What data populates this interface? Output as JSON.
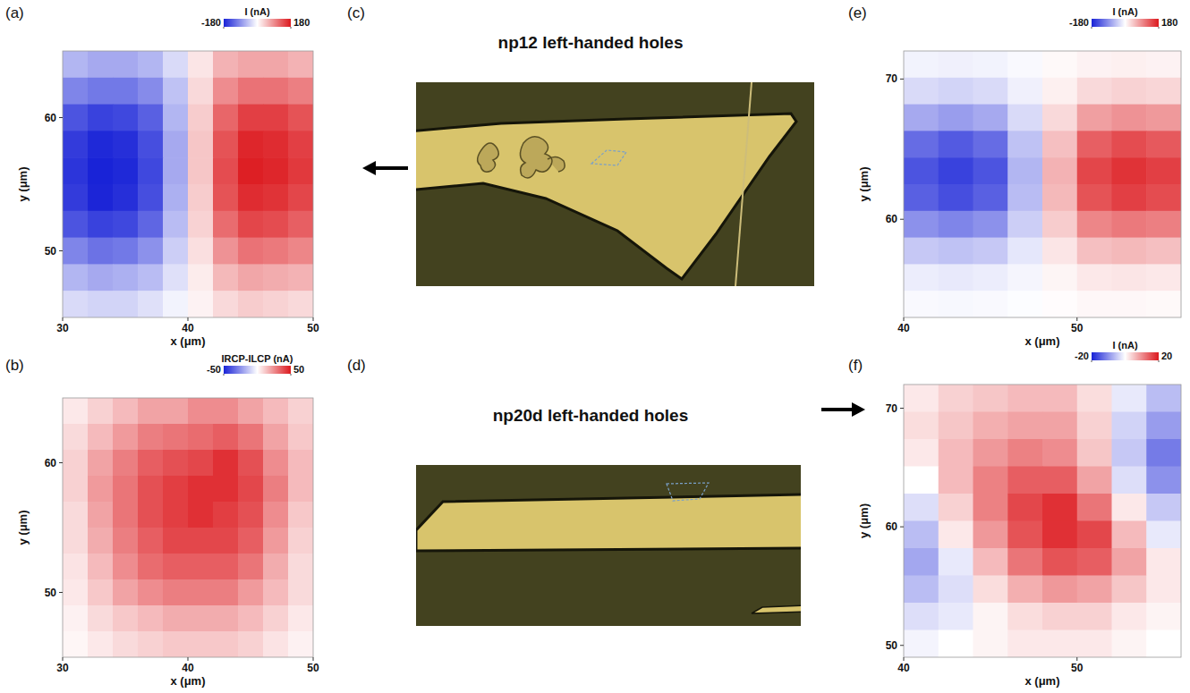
{
  "chart_data": [
    {
      "type": "heatmap",
      "label": "(a)",
      "xlabel": "x (μm)",
      "ylabel": "y (μm)",
      "xlim": [
        30,
        50
      ],
      "ylim": [
        45,
        65
      ],
      "xticks": [
        30,
        40,
        50
      ],
      "yticks": [
        50,
        60
      ],
      "colorbar": {
        "title": "I (nA)",
        "lim": [
          -180,
          180
        ],
        "ticks": [
          -180,
          180
        ]
      },
      "cells": [
        [
          -60,
          -70,
          -70,
          -60,
          -30,
          20,
          60,
          70,
          70,
          60
        ],
        [
          -100,
          -110,
          -110,
          -95,
          -50,
          30,
          90,
          110,
          110,
          100
        ],
        [
          -140,
          -155,
          -150,
          -130,
          -60,
          40,
          120,
          150,
          150,
          135
        ],
        [
          -160,
          -175,
          -170,
          -145,
          -70,
          45,
          135,
          170,
          165,
          150
        ],
        [
          -165,
          -180,
          -175,
          -150,
          -70,
          45,
          140,
          175,
          170,
          155
        ],
        [
          -160,
          -178,
          -170,
          -145,
          -65,
          40,
          135,
          165,
          160,
          145
        ],
        [
          -140,
          -155,
          -150,
          -125,
          -55,
          35,
          115,
          145,
          140,
          125
        ],
        [
          -100,
          -115,
          -110,
          -90,
          -40,
          25,
          85,
          110,
          105,
          95
        ],
        [
          -60,
          -70,
          -65,
          -55,
          -25,
          15,
          55,
          70,
          65,
          60
        ],
        [
          -30,
          -35,
          -35,
          -25,
          -10,
          10,
          30,
          40,
          35,
          30
        ]
      ]
    },
    {
      "type": "heatmap",
      "label": "(b)",
      "xlabel": "x (μm)",
      "ylabel": "y (μm)",
      "xlim": [
        30,
        50
      ],
      "ylim": [
        45,
        65
      ],
      "xticks": [
        30,
        40,
        50
      ],
      "yticks": [
        50,
        60
      ],
      "colorbar": {
        "title": "IRCP-ILCP (nA)",
        "lim": [
          -50,
          50
        ],
        "ticks": [
          -50,
          50
        ]
      },
      "cells": [
        [
          5,
          10,
          15,
          20,
          20,
          25,
          25,
          20,
          15,
          10
        ],
        [
          8,
          15,
          22,
          28,
          30,
          32,
          35,
          30,
          20,
          12
        ],
        [
          10,
          20,
          28,
          35,
          38,
          40,
          45,
          38,
          25,
          15
        ],
        [
          10,
          22,
          30,
          38,
          42,
          45,
          45,
          40,
          28,
          15
        ],
        [
          8,
          20,
          30,
          38,
          42,
          45,
          42,
          38,
          25,
          12
        ],
        [
          8,
          18,
          28,
          35,
          40,
          40,
          40,
          35,
          22,
          10
        ],
        [
          6,
          15,
          25,
          32,
          35,
          35,
          35,
          30,
          18,
          8
        ],
        [
          5,
          12,
          20,
          25,
          28,
          28,
          28,
          22,
          15,
          8
        ],
        [
          3,
          8,
          12,
          15,
          18,
          18,
          18,
          15,
          10,
          5
        ],
        [
          2,
          5,
          8,
          10,
          12,
          12,
          12,
          10,
          6,
          3
        ]
      ]
    },
    {
      "type": "heatmap",
      "label": "(e)",
      "xlabel": "x (μm)",
      "ylabel": "y (μm)",
      "xlim": [
        40,
        56
      ],
      "ylim": [
        53,
        72
      ],
      "xticks": [
        40,
        50
      ],
      "yticks": [
        60,
        70
      ],
      "colorbar": {
        "title": "I (nA)",
        "lim": [
          -180,
          180
        ],
        "ticks": [
          -180,
          180
        ]
      },
      "cells": [
        [
          -10,
          -12,
          -10,
          -5,
          5,
          10,
          12,
          10
        ],
        [
          -30,
          -35,
          -30,
          -12,
          12,
          30,
          35,
          32
        ],
        [
          -70,
          -80,
          -70,
          -30,
          30,
          75,
          85,
          80
        ],
        [
          -120,
          -135,
          -120,
          -50,
          50,
          125,
          140,
          130
        ],
        [
          -140,
          -155,
          -140,
          -60,
          60,
          145,
          160,
          150
        ],
        [
          -130,
          -145,
          -130,
          -55,
          55,
          135,
          150,
          140
        ],
        [
          -90,
          -100,
          -90,
          -40,
          40,
          95,
          105,
          100
        ],
        [
          -45,
          -50,
          -45,
          -20,
          20,
          50,
          55,
          50
        ],
        [
          -15,
          -18,
          -15,
          -8,
          8,
          18,
          20,
          18
        ],
        [
          -5,
          -6,
          -5,
          -2,
          2,
          6,
          6,
          5
        ]
      ]
    },
    {
      "type": "heatmap",
      "label": "(f)",
      "xlabel": "x (μm)",
      "ylabel": "y (μm)",
      "xlim": [
        40,
        56
      ],
      "ylim": [
        49,
        72
      ],
      "xticks": [
        40,
        50
      ],
      "yticks": [
        50,
        60,
        70
      ],
      "colorbar": {
        "title": "I (nA)",
        "lim": [
          -20,
          20
        ],
        "ticks": [
          -20,
          20
        ]
      },
      "cells": [
        [
          2,
          4,
          5,
          6,
          6,
          3,
          -2,
          -6
        ],
        [
          3,
          5,
          7,
          8,
          8,
          4,
          -4,
          -9
        ],
        [
          2,
          6,
          9,
          11,
          10,
          5,
          -5,
          -12
        ],
        [
          0,
          6,
          11,
          14,
          14,
          8,
          -3,
          -10
        ],
        [
          -3,
          4,
          11,
          16,
          18,
          12,
          2,
          -5
        ],
        [
          -6,
          2,
          9,
          15,
          18,
          16,
          6,
          -2
        ],
        [
          -8,
          -2,
          6,
          12,
          15,
          14,
          8,
          2
        ],
        [
          -6,
          -3,
          3,
          7,
          9,
          8,
          5,
          2
        ],
        [
          -3,
          -2,
          1,
          3,
          4,
          4,
          2,
          1
        ],
        [
          -1,
          0,
          1,
          2,
          2,
          2,
          1,
          0
        ]
      ]
    }
  ],
  "images": [
    {
      "label": "(c)",
      "title": "np12 left-handed holes"
    },
    {
      "label": "(d)",
      "title": "np20d left-handed holes"
    }
  ]
}
